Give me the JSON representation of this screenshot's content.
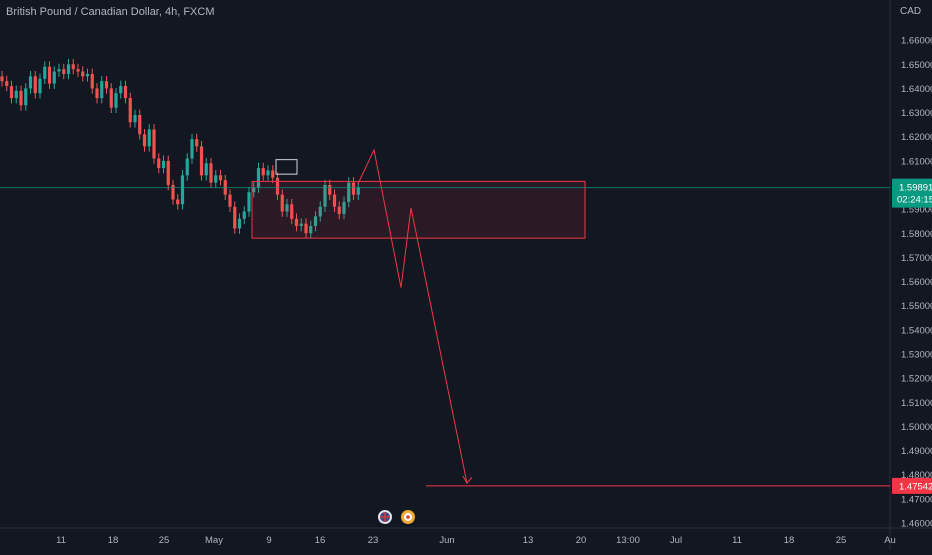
{
  "header": {
    "title": "British Pound / Canadian Dollar, 4h, FXCM"
  },
  "colors": {
    "background": "#131722",
    "up": "#26a69a",
    "down": "#ef5350",
    "drawing": "#f23645",
    "current_price": "#089981",
    "axis_text": "#b2b5be"
  },
  "chart_data": {
    "type": "candlestick",
    "title": "British Pound / Canadian Dollar, 4h, FXCM",
    "currency": "CAD",
    "ylim": [
      1.46,
      1.67
    ],
    "y_ticks": [
      "1.66000",
      "1.65000",
      "1.64000",
      "1.63000",
      "1.62000",
      "1.61000",
      "1.59000",
      "1.58000",
      "1.57000",
      "1.56000",
      "1.55000",
      "1.54000",
      "1.53000",
      "1.52000",
      "1.51000",
      "1.50000",
      "1.49000",
      "1.48000",
      "1.47000",
      "1.46000"
    ],
    "x_ticks": [
      "11",
      "18",
      "25",
      "May",
      "9",
      "16",
      "23",
      "Jun",
      "13",
      "20",
      "13:00",
      "Jul",
      "11",
      "18",
      "25",
      "Au"
    ],
    "current_price": {
      "value": "1.59891",
      "countdown": "02:24:15"
    },
    "target_price": {
      "value": "1.47542"
    },
    "price_path": [
      1.643,
      1.641,
      1.636,
      1.639,
      1.633,
      1.64,
      1.645,
      1.638,
      1.644,
      1.649,
      1.642,
      1.647,
      1.648,
      1.646,
      1.65,
      1.648,
      1.647,
      1.645,
      1.646,
      1.64,
      1.636,
      1.643,
      1.64,
      1.632,
      1.638,
      1.641,
      1.636,
      1.626,
      1.629,
      1.621,
      1.616,
      1.623,
      1.611,
      1.607,
      1.61,
      1.6,
      1.594,
      1.592,
      1.604,
      1.611,
      1.619,
      1.616,
      1.604,
      1.609,
      1.601,
      1.604,
      1.602,
      1.596,
      1.591,
      1.582,
      1.586,
      1.589,
      1.597,
      1.599,
      1.607,
      1.604,
      1.606,
      1.603,
      1.596,
      1.589,
      1.592,
      1.586,
      1.583,
      1.584,
      1.58,
      1.583,
      1.587,
      1.591,
      1.6,
      1.596,
      1.591,
      1.588,
      1.593,
      1.601,
      1.596,
      1.599
    ],
    "annotations": {
      "range_box": {
        "top": 1.6015,
        "bottom": 1.578
      },
      "small_box": {
        "top": 1.6105,
        "bottom": 1.6045
      },
      "projection_path": [
        1.6005,
        1.6145,
        1.5575,
        1.5905,
        1.4765
      ],
      "target_line": 1.4754
    }
  }
}
